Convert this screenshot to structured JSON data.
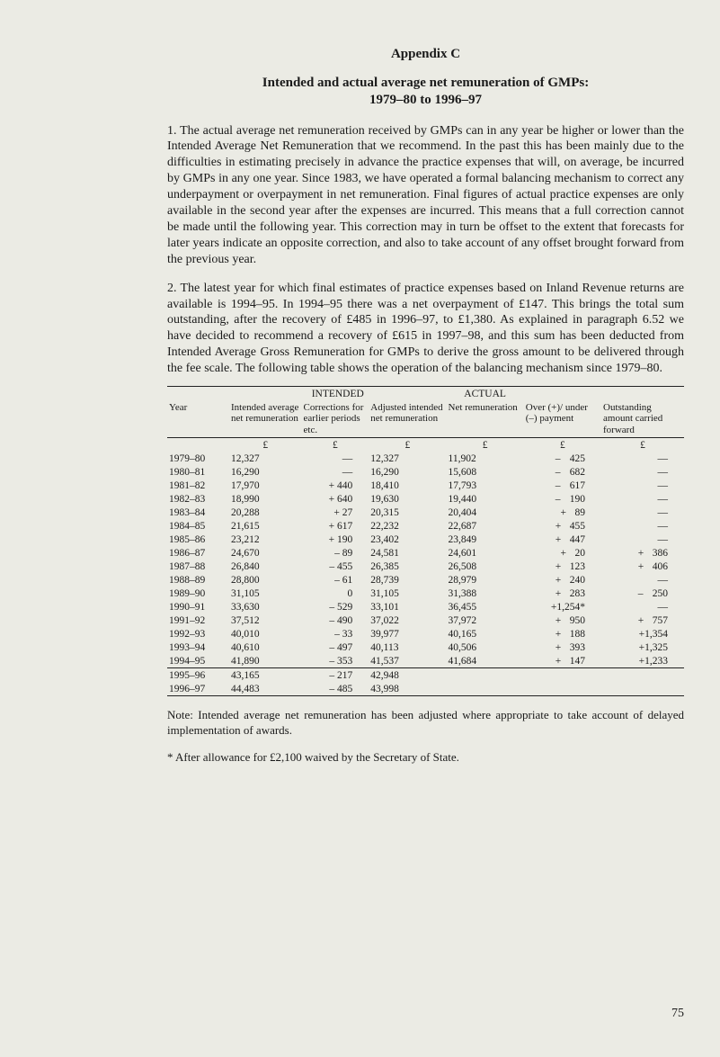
{
  "appendix": "Appendix C",
  "title_line1": "Intended and actual average net remuneration of GMPs:",
  "title_line2": "1979–80 to 1996–97",
  "para1": "1. The actual average net remuneration received by GMPs can in any year be higher or lower than the Intended Average Net Remuneration that we recommend. In the past this has been mainly due to the difficulties in estimating precisely in advance the practice expenses that will, on average, be incurred by GMPs in any one year. Since 1983, we have operated a formal balancing mechanism to correct any underpayment or overpayment in net remuneration. Final figures of actual practice expenses are only available in the second year after the expenses are incurred. This means that a full correction cannot be made until the following year. This correction may in turn be offset to the extent that forecasts for later years indicate an opposite correction, and also to take account of any offset brought forward from the previous year.",
  "para2": "2. The latest year for which final estimates of practice expenses based on Inland Revenue returns are available is 1994–95. In 1994–95 there was a net overpayment of £147. This brings the total sum outstanding, after the recovery of £485 in 1996–97, to £1,380. As explained in paragraph 6.52 we have decided to recommend a recovery of £615 in 1997–98, and this sum has been deducted from Intended Average Gross Remuneration for GMPs to derive the gross amount to be delivered through the fee scale. The following table shows the operation of the balancing mechanism since 1979–80.",
  "table": {
    "section_intended": "INTENDED",
    "section_actual": "ACTUAL",
    "col_year": "Year",
    "col1": "Intended average net remuneration",
    "col2": "Corrections for earlier periods etc.",
    "col3": "Adjusted intended net remuneration",
    "col4": "Net remuneration",
    "col5": "Over (+)/ under (–) payment",
    "col6": "Outstanding amount carried forward",
    "unit": "£",
    "rows": [
      {
        "y": "1979–80",
        "c1": "12,327",
        "c2": "—",
        "c3": "12,327",
        "c4": "11,902",
        "c5s": "–",
        "c5": "425",
        "c6s": "",
        "c6": "—"
      },
      {
        "y": "1980–81",
        "c1": "16,290",
        "c2": "—",
        "c3": "16,290",
        "c4": "15,608",
        "c5s": "–",
        "c5": "682",
        "c6s": "",
        "c6": "—"
      },
      {
        "y": "1981–82",
        "c1": "17,970",
        "c2": "+ 440",
        "c3": "18,410",
        "c4": "17,793",
        "c5s": "–",
        "c5": "617",
        "c6s": "",
        "c6": "—"
      },
      {
        "y": "1982–83",
        "c1": "18,990",
        "c2": "+ 640",
        "c3": "19,630",
        "c4": "19,440",
        "c5s": "–",
        "c5": "190",
        "c6s": "",
        "c6": "—"
      },
      {
        "y": "1983–84",
        "c1": "20,288",
        "c2": "+  27",
        "c3": "20,315",
        "c4": "20,404",
        "c5s": "+",
        "c5": "89",
        "c6s": "",
        "c6": "—"
      },
      {
        "y": "1984–85",
        "c1": "21,615",
        "c2": "+ 617",
        "c3": "22,232",
        "c4": "22,687",
        "c5s": "+",
        "c5": "455",
        "c6s": "",
        "c6": "—"
      },
      {
        "y": "1985–86",
        "c1": "23,212",
        "c2": "+ 190",
        "c3": "23,402",
        "c4": "23,849",
        "c5s": "+",
        "c5": "447",
        "c6s": "",
        "c6": "—"
      },
      {
        "y": "1986–87",
        "c1": "24,670",
        "c2": "–  89",
        "c3": "24,581",
        "c4": "24,601",
        "c5s": "+",
        "c5": "20",
        "c6s": "+",
        "c6": "386"
      },
      {
        "y": "1987–88",
        "c1": "26,840",
        "c2": "– 455",
        "c3": "26,385",
        "c4": "26,508",
        "c5s": "+",
        "c5": "123",
        "c6s": "+",
        "c6": "406"
      },
      {
        "y": "1988–89",
        "c1": "28,800",
        "c2": "–  61",
        "c3": "28,739",
        "c4": "28,979",
        "c5s": "+",
        "c5": "240",
        "c6s": "",
        "c6": "—"
      },
      {
        "y": "1989–90",
        "c1": "31,105",
        "c2": "0",
        "c3": "31,105",
        "c4": "31,388",
        "c5s": "+",
        "c5": "283",
        "c6s": "–",
        "c6": "250"
      },
      {
        "y": "1990–91",
        "c1": "33,630",
        "c2": "– 529",
        "c3": "33,101",
        "c4": "36,455",
        "c5s": "",
        "c5": "+1,254*",
        "c6s": "",
        "c6": "—"
      },
      {
        "y": "1991–92",
        "c1": "37,512",
        "c2": "– 490",
        "c3": "37,022",
        "c4": "37,972",
        "c5s": "+",
        "c5": "950",
        "c6s": "+",
        "c6": "757"
      },
      {
        "y": "1992–93",
        "c1": "40,010",
        "c2": "–  33",
        "c3": "39,977",
        "c4": "40,165",
        "c5s": "+",
        "c5": "188",
        "c6s": "",
        "c6": "+1,354"
      },
      {
        "y": "1993–94",
        "c1": "40,610",
        "c2": "– 497",
        "c3": "40,113",
        "c4": "40,506",
        "c5s": "+",
        "c5": "393",
        "c6s": "",
        "c6": "+1,325"
      },
      {
        "y": "1994–95",
        "c1": "41,890",
        "c2": "– 353",
        "c3": "41,537",
        "c4": "41,684",
        "c5s": "+",
        "c5": "147",
        "c6s": "",
        "c6": "+1,233"
      }
    ],
    "rows2": [
      {
        "y": "1995–96",
        "c1": "43,165",
        "c2": "– 217",
        "c3": "42,948",
        "c4": "",
        "c5s": "",
        "c5": "",
        "c6s": "",
        "c6": ""
      },
      {
        "y": "1996–97",
        "c1": "44,483",
        "c2": "– 485",
        "c3": "43,998",
        "c4": "",
        "c5s": "",
        "c5": "",
        "c6s": "",
        "c6": ""
      }
    ]
  },
  "note": "Note: Intended average net remuneration has been adjusted where appropriate to take account of delayed implementation of awards.",
  "footnote": "* After allowance for £2,100 waived by the Secretary of State.",
  "pagenum": "75"
}
